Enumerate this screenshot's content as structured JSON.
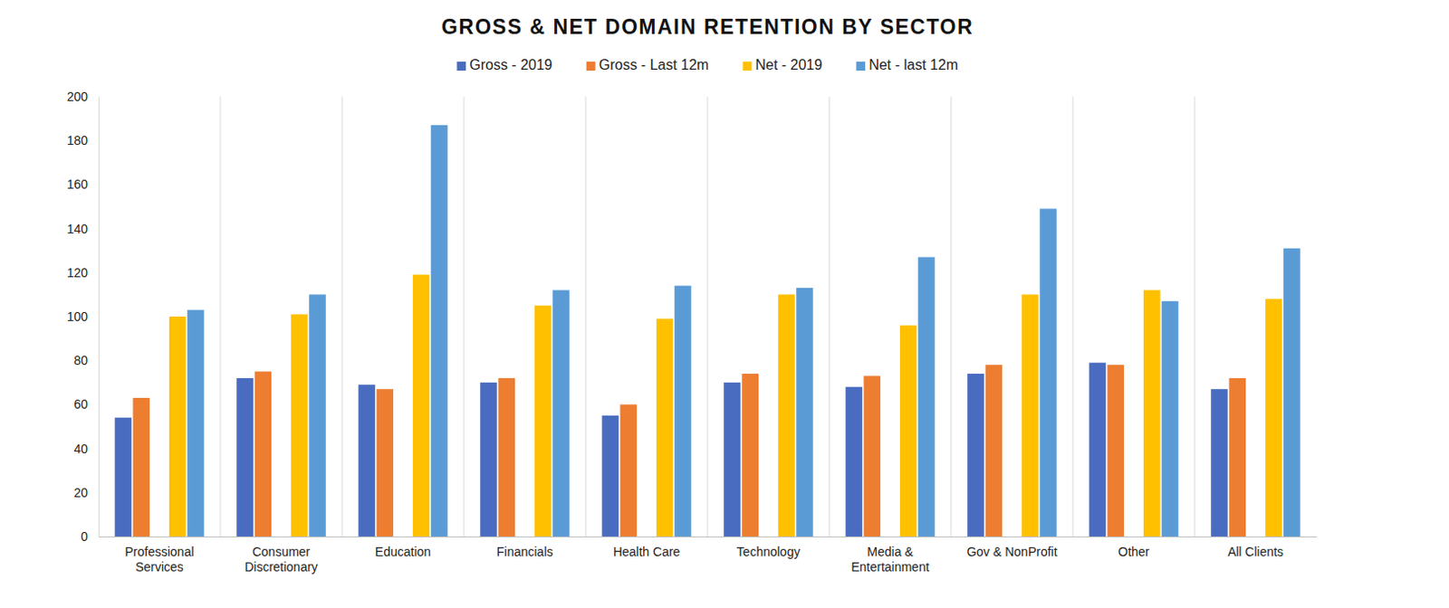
{
  "chart_data": {
    "type": "bar",
    "title": "GROSS & NET DOMAIN RETENTION BY SECTOR",
    "categories": [
      "Professional Services",
      "Consumer Discretionary",
      "Education",
      "Financials",
      "Health Care",
      "Technology",
      "Media & Entertainment",
      "Gov & NonProfit",
      "Other",
      "All Clients"
    ],
    "series": [
      {
        "name": "Gross - 2019",
        "color": "#4a6cc0",
        "values": [
          54,
          72,
          69,
          70,
          55,
          70,
          68,
          74,
          79,
          67
        ]
      },
      {
        "name": "Gross - Last 12m",
        "color": "#ed7d31",
        "values": [
          63,
          75,
          67,
          72,
          60,
          74,
          73,
          78,
          78,
          72
        ]
      },
      {
        "name": "Net - 2019",
        "color": "#ffc000",
        "values": [
          100,
          101,
          119,
          105,
          99,
          110,
          96,
          110,
          112,
          108
        ]
      },
      {
        "name": "Net - last 12m",
        "color": "#5b9bd5",
        "values": [
          103,
          110,
          187,
          112,
          114,
          113,
          127,
          149,
          107,
          131
        ]
      }
    ],
    "ylim": [
      0,
      200
    ],
    "yticks": [
      0,
      20,
      40,
      60,
      80,
      100,
      120,
      140,
      160,
      180,
      200
    ],
    "grid": true,
    "legend": "top"
  }
}
